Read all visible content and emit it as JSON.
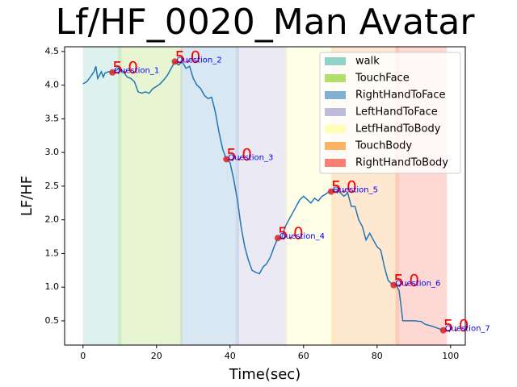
{
  "chart_data": {
    "type": "line",
    "title": "Lf/HF_0020_Man Avatar",
    "x_label": "Time(sec)",
    "y_label": "LF/HF",
    "xlim": [
      -5,
      104
    ],
    "ylim": [
      0.14,
      4.57
    ],
    "xticks": [
      0,
      20,
      40,
      60,
      80,
      100
    ],
    "yticks": [
      0.5,
      {
        "value": 1.0,
        "label": "1.0"
      },
      1.5,
      {
        "value": 2.0,
        "label": "2.0"
      },
      2.5,
      {
        "value": 3.0,
        "label": "3.0"
      },
      3.5,
      {
        "value": 4.0,
        "label": "4.0"
      },
      4.5
    ],
    "spans": [
      {
        "name": "walk",
        "color": "#8dd3c7",
        "start": 0,
        "end": 10.5
      },
      {
        "name": "TouchFace",
        "color": "#b3de69",
        "start": 9.5,
        "end": 27
      },
      {
        "name": "RightHandToFace",
        "color": "#80b1d3",
        "start": 26.5,
        "end": 42.5
      },
      {
        "name": "LeftHandToFace",
        "color": "#bebada",
        "start": 41.5,
        "end": 55.5
      },
      {
        "name": "LetfHandToBody",
        "color": "#ffffb3",
        "start": 55,
        "end": 68.5
      },
      {
        "name": "TouchBody",
        "color": "#fdb462",
        "start": 67.5,
        "end": 86
      },
      {
        "name": "RightHandToBody",
        "color": "#fb8072",
        "start": 85,
        "end": 99
      }
    ],
    "series": [
      {
        "color": "#1f77b4",
        "x": [
          0,
          1,
          2,
          3,
          3.5,
          4,
          5,
          5.5,
          6,
          7,
          8,
          9,
          10,
          11,
          12,
          13,
          14,
          15,
          16,
          17,
          18,
          19,
          20,
          21,
          22,
          23,
          24,
          25,
          26,
          27,
          28,
          29,
          30,
          31,
          32,
          33,
          34,
          35,
          36,
          37,
          38,
          39,
          40,
          41,
          42,
          43,
          44,
          45,
          46,
          47,
          48,
          49,
          50,
          51,
          52,
          53,
          54,
          55,
          56,
          57,
          58,
          59,
          60,
          61,
          62,
          63,
          64,
          65,
          66,
          67,
          68,
          69,
          70,
          71,
          72,
          73,
          74,
          75,
          76,
          77,
          78,
          79,
          80,
          81,
          82,
          83,
          84,
          85,
          86,
          87,
          88,
          90,
          92,
          93,
          95,
          97,
          98
        ],
        "values": [
          4.02,
          4.05,
          4.12,
          4.2,
          4.28,
          4.1,
          4.2,
          4.12,
          4.18,
          4.2,
          4.19,
          4.22,
          4.25,
          4.2,
          4.12,
          4.1,
          4.05,
          3.9,
          3.88,
          3.9,
          3.88,
          3.95,
          3.98,
          4.02,
          4.08,
          4.15,
          4.25,
          4.35,
          4.3,
          4.35,
          4.25,
          4.28,
          4.1,
          4.0,
          3.95,
          3.85,
          3.8,
          3.82,
          3.6,
          3.3,
          3.05,
          2.9,
          2.85,
          2.6,
          2.3,
          1.9,
          1.6,
          1.4,
          1.25,
          1.22,
          1.2,
          1.3,
          1.35,
          1.45,
          1.6,
          1.73,
          1.72,
          1.9,
          2.0,
          2.1,
          2.2,
          2.3,
          2.35,
          2.3,
          2.25,
          2.32,
          2.28,
          2.35,
          2.38,
          2.42,
          2.45,
          2.45,
          2.4,
          2.35,
          2.4,
          2.2,
          2.2,
          2.0,
          1.9,
          1.7,
          1.8,
          1.7,
          1.6,
          1.55,
          1.3,
          1.1,
          1.05,
          1.05,
          0.95,
          0.5,
          0.5,
          0.5,
          0.49,
          0.45,
          0.42,
          0.38,
          0.36
        ]
      }
    ],
    "annotations": [
      {
        "label": "Question_1",
        "score": "5.0",
        "x": 8,
        "y": 4.19
      },
      {
        "label": "Question_2",
        "score": "5.0",
        "x": 25,
        "y": 4.35
      },
      {
        "label": "Question_3",
        "score": "5.0",
        "x": 39,
        "y": 2.9
      },
      {
        "label": "Question_4",
        "score": "5.0",
        "x": 53,
        "y": 1.73
      },
      {
        "label": "Question_5",
        "score": "5.0",
        "x": 67.5,
        "y": 2.42
      },
      {
        "label": "Question_6",
        "score": "5.0",
        "x": 84.5,
        "y": 1.03
      },
      {
        "label": "Question_7",
        "score": "5.0",
        "x": 98,
        "y": 0.36
      }
    ]
  }
}
